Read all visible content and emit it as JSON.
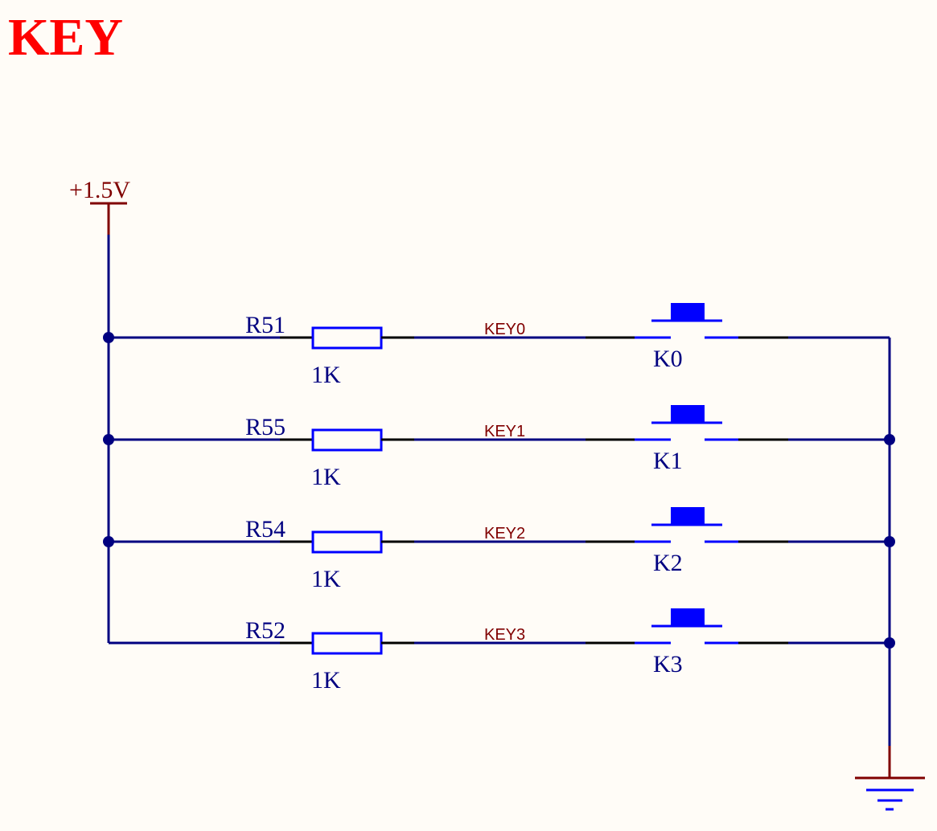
{
  "title": "KEY",
  "power": {
    "label": "+1.5V"
  },
  "rows": [
    {
      "resistor": "R51",
      "value": "1K",
      "net": "KEY0",
      "switch": "K0"
    },
    {
      "resistor": "R55",
      "value": "1K",
      "net": "KEY1",
      "switch": "K1"
    },
    {
      "resistor": "R54",
      "value": "1K",
      "net": "KEY2",
      "switch": "K2"
    },
    {
      "resistor": "R52",
      "value": "1K",
      "net": "KEY3",
      "switch": "K3"
    }
  ],
  "colors": {
    "background": "#FFFCF7",
    "title": "#FF0000",
    "wire": "#000080",
    "component": "#0000FF",
    "net_label": "#800000",
    "designator_text": "#000080",
    "value_text": "#000080",
    "pin": "#000000",
    "power": "#800000",
    "ground": "#800000"
  }
}
